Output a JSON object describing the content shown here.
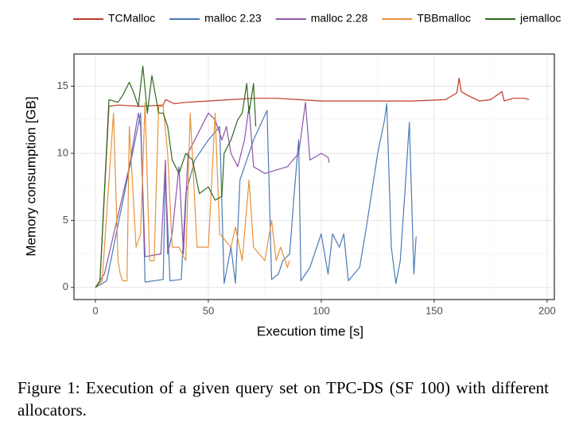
{
  "chart_data": {
    "type": "line",
    "xlabel": "Execution time [s]",
    "ylabel": "Memory consumption [GB]",
    "xlim": [
      -9.5,
      203.2
    ],
    "ylim": [
      -0.9,
      17.4
    ],
    "xticks": [
      0,
      50,
      100,
      150,
      200
    ],
    "yticks": [
      0,
      5,
      10,
      15
    ],
    "grid": true,
    "legend": "top",
    "series": [
      {
        "name": "TCMalloc",
        "color": "#c0392b",
        "x": [
          0,
          2,
          6,
          10,
          20,
          30,
          31,
          35,
          40,
          50,
          60,
          70,
          80,
          90,
          100,
          120,
          140,
          155,
          160,
          161,
          162,
          165,
          170,
          175,
          180,
          181,
          185,
          190,
          192
        ],
        "values": [
          0,
          0.5,
          13.5,
          13.6,
          13.5,
          13.6,
          14.0,
          13.7,
          13.8,
          13.9,
          14.0,
          14.1,
          14.1,
          14.0,
          13.9,
          13.9,
          13.9,
          14.0,
          14.5,
          15.6,
          14.6,
          14.3,
          13.9,
          14.0,
          14.6,
          13.9,
          14.1,
          14.1,
          14.0
        ]
      },
      {
        "name": "malloc 2.23",
        "color": "#4a7ab5",
        "x": [
          0,
          5,
          20,
          22,
          30,
          31,
          33,
          38,
          40,
          44,
          50,
          55,
          57,
          60,
          62,
          64,
          70,
          76,
          78,
          81,
          83,
          86,
          88,
          90,
          91,
          95,
          100,
          103,
          105,
          108,
          110,
          112,
          117,
          120,
          125,
          128,
          129,
          131,
          133,
          135,
          137,
          139,
          141,
          142
        ],
        "values": [
          0,
          0.5,
          13,
          0.4,
          0.6,
          8.5,
          0.5,
          0.6,
          7,
          9.5,
          11,
          12,
          0.3,
          3,
          0.3,
          8,
          11,
          13.2,
          0.6,
          1,
          2,
          2.5,
          7,
          11,
          0.5,
          1.5,
          4,
          1,
          4,
          3,
          4,
          0.5,
          1.5,
          4.5,
          10,
          12.5,
          13.7,
          3,
          0.3,
          2,
          7,
          12.3,
          1,
          3.8
        ]
      },
      {
        "name": "malloc 2.28",
        "color": "#8e55a8",
        "x": [
          0,
          4,
          15,
          19,
          20,
          22,
          29,
          31,
          32,
          34,
          37,
          39,
          41,
          44,
          50,
          53,
          56,
          58,
          60,
          63,
          66,
          68,
          70,
          75,
          85,
          90,
          93,
          95,
          100,
          103,
          103.5
        ],
        "values": [
          0,
          1,
          9,
          13,
          12,
          2.3,
          2.5,
          9.5,
          2.5,
          4,
          9,
          2.5,
          10,
          11,
          13,
          12.5,
          11,
          12,
          10,
          9,
          11,
          13.5,
          9,
          8.5,
          9,
          10,
          13.8,
          9.5,
          10,
          9.7,
          9.3
        ]
      },
      {
        "name": "TBBmalloc",
        "color": "#e8923a",
        "x": [
          0,
          3,
          8,
          10,
          11,
          12,
          14,
          15,
          18,
          20,
          22,
          24,
          26,
          28,
          30,
          32,
          34,
          37,
          40,
          42,
          45,
          50,
          53,
          55,
          60,
          62,
          65,
          68,
          70,
          75,
          78,
          80,
          82,
          85,
          86
        ],
        "values": [
          0,
          0.5,
          13,
          2,
          1,
          0.5,
          0.5,
          12,
          3,
          4,
          13.8,
          2,
          2,
          13.5,
          13.5,
          10,
          3,
          3,
          2,
          13,
          3,
          3,
          13,
          4,
          3,
          4.5,
          2,
          8,
          3,
          2,
          5,
          2,
          3,
          1.5,
          2
        ]
      },
      {
        "name": "jemalloc",
        "color": "#2d6a1f",
        "x": [
          0,
          2,
          6,
          10,
          12,
          15,
          17,
          19,
          21,
          23,
          25,
          28,
          30,
          32,
          34,
          37,
          40,
          43,
          46,
          50,
          53,
          56,
          57,
          60,
          63,
          65,
          67,
          68,
          70,
          71
        ],
        "values": [
          0,
          0.5,
          14,
          13.8,
          14.3,
          15.3,
          14.5,
          13.5,
          16.5,
          13,
          15.8,
          13,
          13,
          12,
          9.5,
          8.5,
          10,
          9.5,
          7,
          7.5,
          6.5,
          6.8,
          10,
          11,
          12.5,
          13,
          15.2,
          13,
          15.2,
          12
        ]
      }
    ]
  },
  "caption": "Figure 1:  Execution of a given query set on TPC-DS (SF 100) with different allocators."
}
